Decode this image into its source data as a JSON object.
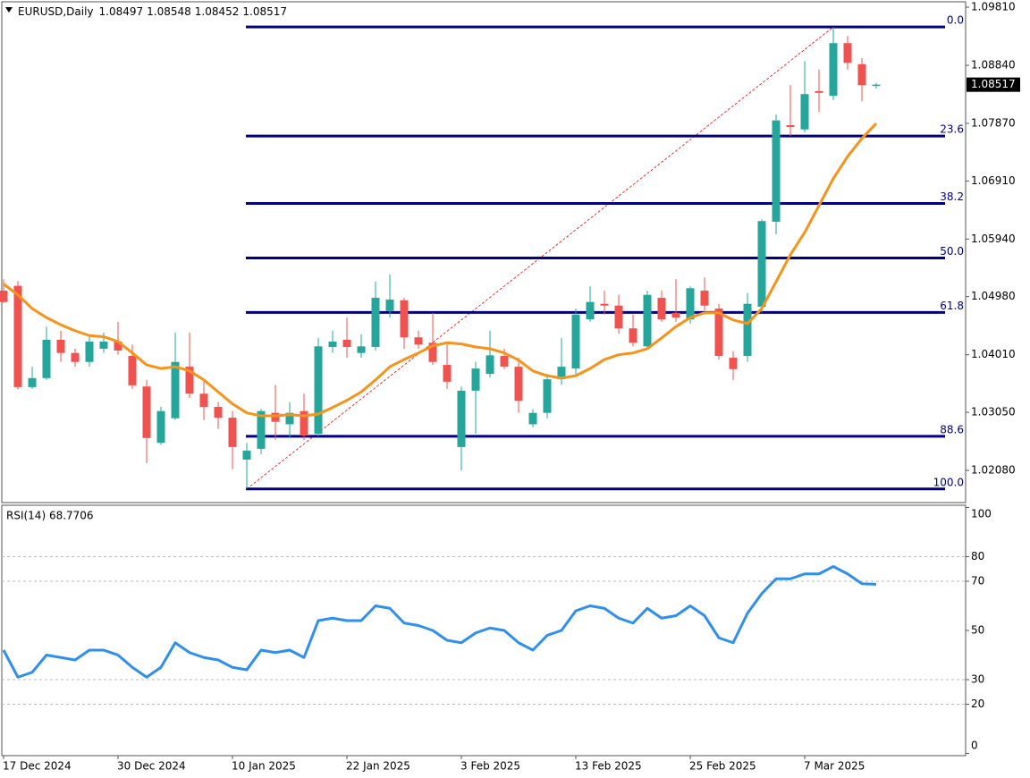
{
  "chart_data": [
    {
      "type": "candlestick",
      "header": {
        "symbol": "EURUSD,Daily",
        "values": [
          1.08497,
          1.08548,
          1.08452,
          1.08517
        ]
      },
      "categories": [
        "17 Dec 2024",
        null,
        null,
        null,
        null,
        null,
        null,
        null,
        "30 Dec 2024",
        null,
        null,
        null,
        null,
        null,
        null,
        null,
        "10 Jan 2025",
        null,
        null,
        null,
        null,
        null,
        null,
        null,
        "22 Jan 2025",
        null,
        null,
        null,
        null,
        null,
        null,
        null,
        "3 Feb 2025",
        null,
        null,
        null,
        null,
        null,
        null,
        null,
        "13 Feb 2025",
        null,
        null,
        null,
        null,
        null,
        null,
        null,
        "25 Feb 2025",
        null,
        null,
        null,
        null,
        null,
        null,
        null,
        "7 Mar 2025",
        null,
        null,
        null,
        null,
        null
      ],
      "open": [
        1.0508,
        1.0516,
        1.0347,
        1.0362,
        1.0426,
        1.0404,
        1.0389,
        1.0411,
        1.0423,
        1.0399,
        1.0348,
        1.0254,
        1.0295,
        1.0381,
        1.0336,
        1.0314,
        1.0296,
        1.0226,
        1.0244,
        1.0304,
        1.0285,
        1.0307,
        1.0269,
        1.0414,
        1.0426,
        1.0404,
        1.0414,
        1.0474,
        1.0492,
        1.043,
        1.0421,
        1.0384,
        1.0247,
        1.0341,
        1.0369,
        1.0399,
        1.0381,
        1.0285,
        1.0304,
        1.036,
        1.0378,
        1.046,
        1.0486,
        1.0483,
        1.0445,
        1.0415,
        1.0496,
        1.0471,
        1.046,
        1.0508,
        1.0478,
        1.0396,
        1.0399,
        1.0481,
        1.0623,
        1.0784,
        1.0777,
        1.0841,
        1.0833,
        1.0921,
        1.0886,
        1.08497
      ],
      "high": [
        1.0527,
        1.0524,
        1.0381,
        1.0448,
        1.0441,
        1.0411,
        1.0433,
        1.0438,
        1.0456,
        1.0418,
        1.0359,
        1.0314,
        1.0438,
        1.0438,
        1.0359,
        1.0322,
        1.0307,
        1.0254,
        1.031,
        1.0351,
        1.0322,
        1.0336,
        1.0429,
        1.0441,
        1.0463,
        1.0435,
        1.0523,
        1.0535,
        1.0496,
        1.0441,
        1.0471,
        1.0418,
        1.0348,
        1.0389,
        1.0441,
        1.0411,
        1.0396,
        1.031,
        1.0369,
        1.0429,
        1.0478,
        1.0515,
        1.0508,
        1.0501,
        1.0468,
        1.0508,
        1.0508,
        1.0527,
        1.0515,
        1.053,
        1.0486,
        1.0407,
        1.0504,
        1.0627,
        1.0802,
        1.0851,
        1.0891,
        1.0877,
        1.0948,
        1.0933,
        1.0896,
        1.08548
      ],
      "low": [
        1.0487,
        1.0343,
        1.0344,
        1.0359,
        1.0389,
        1.0381,
        1.0381,
        1.0404,
        1.0401,
        1.0344,
        1.022,
        1.0251,
        1.0292,
        1.0329,
        1.0292,
        1.0277,
        1.021,
        1.0177,
        1.0235,
        1.0259,
        1.0262,
        1.0259,
        1.0265,
        1.0404,
        1.0396,
        1.0396,
        1.0408,
        1.0463,
        1.0411,
        1.0411,
        1.0384,
        1.0344,
        1.0208,
        1.0269,
        1.0363,
        1.0377,
        1.0304,
        1.028,
        1.0295,
        1.0351,
        1.0369,
        1.0456,
        1.0468,
        1.0436,
        1.0415,
        1.0411,
        1.0456,
        1.0456,
        1.0453,
        1.0474,
        1.0393,
        1.0359,
        1.0389,
        1.0471,
        1.0602,
        1.0766,
        1.0772,
        1.0806,
        1.0826,
        1.0877,
        1.0824,
        1.08452
      ],
      "close": [
        1.0489,
        1.0347,
        1.0362,
        1.0426,
        1.0404,
        1.0389,
        1.0423,
        1.0423,
        1.0408,
        1.035,
        1.0262,
        1.0307,
        1.0389,
        1.0336,
        1.0314,
        1.0296,
        1.0247,
        1.0241,
        1.0307,
        1.0289,
        1.0304,
        1.0266,
        1.0415,
        1.0423,
        1.0414,
        1.0415,
        1.0496,
        1.0493,
        1.043,
        1.0418,
        1.0389,
        1.0356,
        1.0341,
        1.0378,
        1.04,
        1.0381,
        1.0324,
        1.0304,
        1.036,
        1.0381,
        1.0468,
        1.0489,
        1.0483,
        1.0445,
        1.0421,
        1.0501,
        1.046,
        1.0463,
        1.0512,
        1.0483,
        1.0399,
        1.0377,
        1.0486,
        1.0624,
        1.0792,
        1.0781,
        1.0836,
        1.0838,
        1.0921,
        1.0888,
        1.0851,
        1.08517
      ],
      "up_color": "#26a69a",
      "down_color": "#ef5350",
      "moving_average": {
        "color": "#f7931a",
        "values": [
          1.0519,
          1.0501,
          1.0478,
          1.0463,
          1.0451,
          1.0441,
          1.0433,
          1.0431,
          1.0423,
          1.0404,
          1.0384,
          1.0378,
          1.0381,
          1.0374,
          1.0359,
          1.0339,
          1.0319,
          1.0304,
          1.0299,
          1.0299,
          1.0301,
          1.0299,
          1.0302,
          1.0313,
          1.0325,
          1.0339,
          1.0359,
          1.0381,
          1.0393,
          1.0404,
          1.0416,
          1.0421,
          1.0419,
          1.0414,
          1.0411,
          1.0404,
          1.0392,
          1.0374,
          1.0366,
          1.0362,
          1.0366,
          1.0378,
          1.0393,
          1.0401,
          1.0404,
          1.0411,
          1.0429,
          1.0448,
          1.0463,
          1.0471,
          1.0471,
          1.0459,
          1.0453,
          1.0478,
          1.0523,
          1.0568,
          1.0605,
          1.065,
          1.0695,
          1.0732,
          1.0762,
          1.0787
        ]
      },
      "fibonacci": {
        "color": "#000080",
        "anchor_color": "#ff0000",
        "levels": [
          {
            "value": 0,
            "label": "0.0"
          },
          {
            "value": 23.6,
            "label": "23.6"
          },
          {
            "value": 38.2,
            "label": "38.2"
          },
          {
            "value": 50,
            "label": "50.0"
          },
          {
            "value": 61.8,
            "label": "61.8"
          },
          {
            "value": 88.6,
            "label": "88.6"
          },
          {
            "value": 100,
            "label": "100.0"
          }
        ]
      },
      "ylim": [
        1.01543,
        1.099
      ],
      "yticks": [
        {
          "value": 1.0981,
          "label": "1.09810"
        },
        {
          "value": 1.0884,
          "label": "1.08840"
        },
        {
          "value": 1.0787,
          "label": "1.07870"
        },
        {
          "value": 1.0691,
          "label": "1.06910"
        },
        {
          "value": 1.0594,
          "label": "1.05940"
        },
        {
          "value": 1.0498,
          "label": "1.04980"
        },
        {
          "value": 1.0401,
          "label": "1.04010"
        },
        {
          "value": 1.0305,
          "label": "1.03050"
        },
        {
          "value": 1.0208,
          "label": "1.02080"
        }
      ]
    },
    {
      "type": "line",
      "title": "RSI(14) 68.7706",
      "color": "#2f8fef",
      "values": [
        42,
        31,
        33,
        40,
        39,
        38,
        42,
        42,
        40,
        35,
        31,
        35,
        45,
        41,
        39,
        38,
        35,
        34,
        42,
        41,
        42,
        39,
        54,
        55,
        54,
        54,
        60,
        59,
        53,
        52,
        50,
        46,
        45,
        49,
        51,
        50,
        45,
        42,
        48,
        50,
        58,
        60,
        59,
        55,
        53,
        59,
        55,
        56,
        60,
        56,
        47,
        45,
        57,
        65,
        71,
        71,
        73,
        73,
        76,
        73,
        69,
        68.7706
      ],
      "ylim": [
        0,
        100
      ],
      "yticks": [
        100,
        80,
        70,
        50,
        30,
        20,
        0
      ],
      "dashed_levels": [
        80,
        70,
        30,
        20
      ]
    }
  ]
}
